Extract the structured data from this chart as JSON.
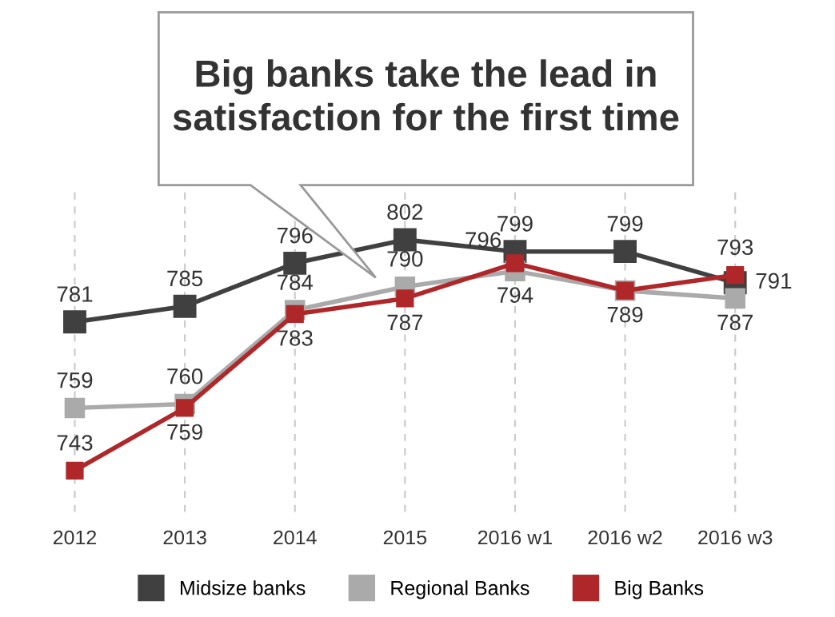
{
  "chart_data": {
    "type": "line",
    "title": "Big banks take the lead in\nsatisfaction for the first time",
    "categories": [
      "2012",
      "2013",
      "2014",
      "2015",
      "2016 w1",
      "2016 w2",
      "2016 w3"
    ],
    "series": [
      {
        "name": "Midsize banks",
        "color": "#404040",
        "values": [
          781,
          785,
          796,
          802,
          799,
          799,
          791
        ],
        "value_labels": [
          "781",
          "785",
          "796",
          "802",
          "799",
          "799",
          "791"
        ]
      },
      {
        "name": "Regional Banks",
        "color": "#aaaaaa",
        "values": [
          759,
          760,
          784,
          790,
          794,
          789,
          787
        ],
        "value_labels": [
          "759",
          "760",
          "784",
          "790",
          "794",
          null,
          "787"
        ]
      },
      {
        "name": "Big Banks",
        "color": "#b0272a",
        "values": [
          743,
          759,
          783,
          787,
          796,
          789,
          793
        ],
        "value_labels": [
          "743",
          "759",
          "783",
          "787",
          "796",
          "789",
          "793"
        ]
      }
    ],
    "marker": "square",
    "line_style": "solid",
    "grid": "x",
    "legend": "bottom",
    "tick_labels": "x"
  }
}
